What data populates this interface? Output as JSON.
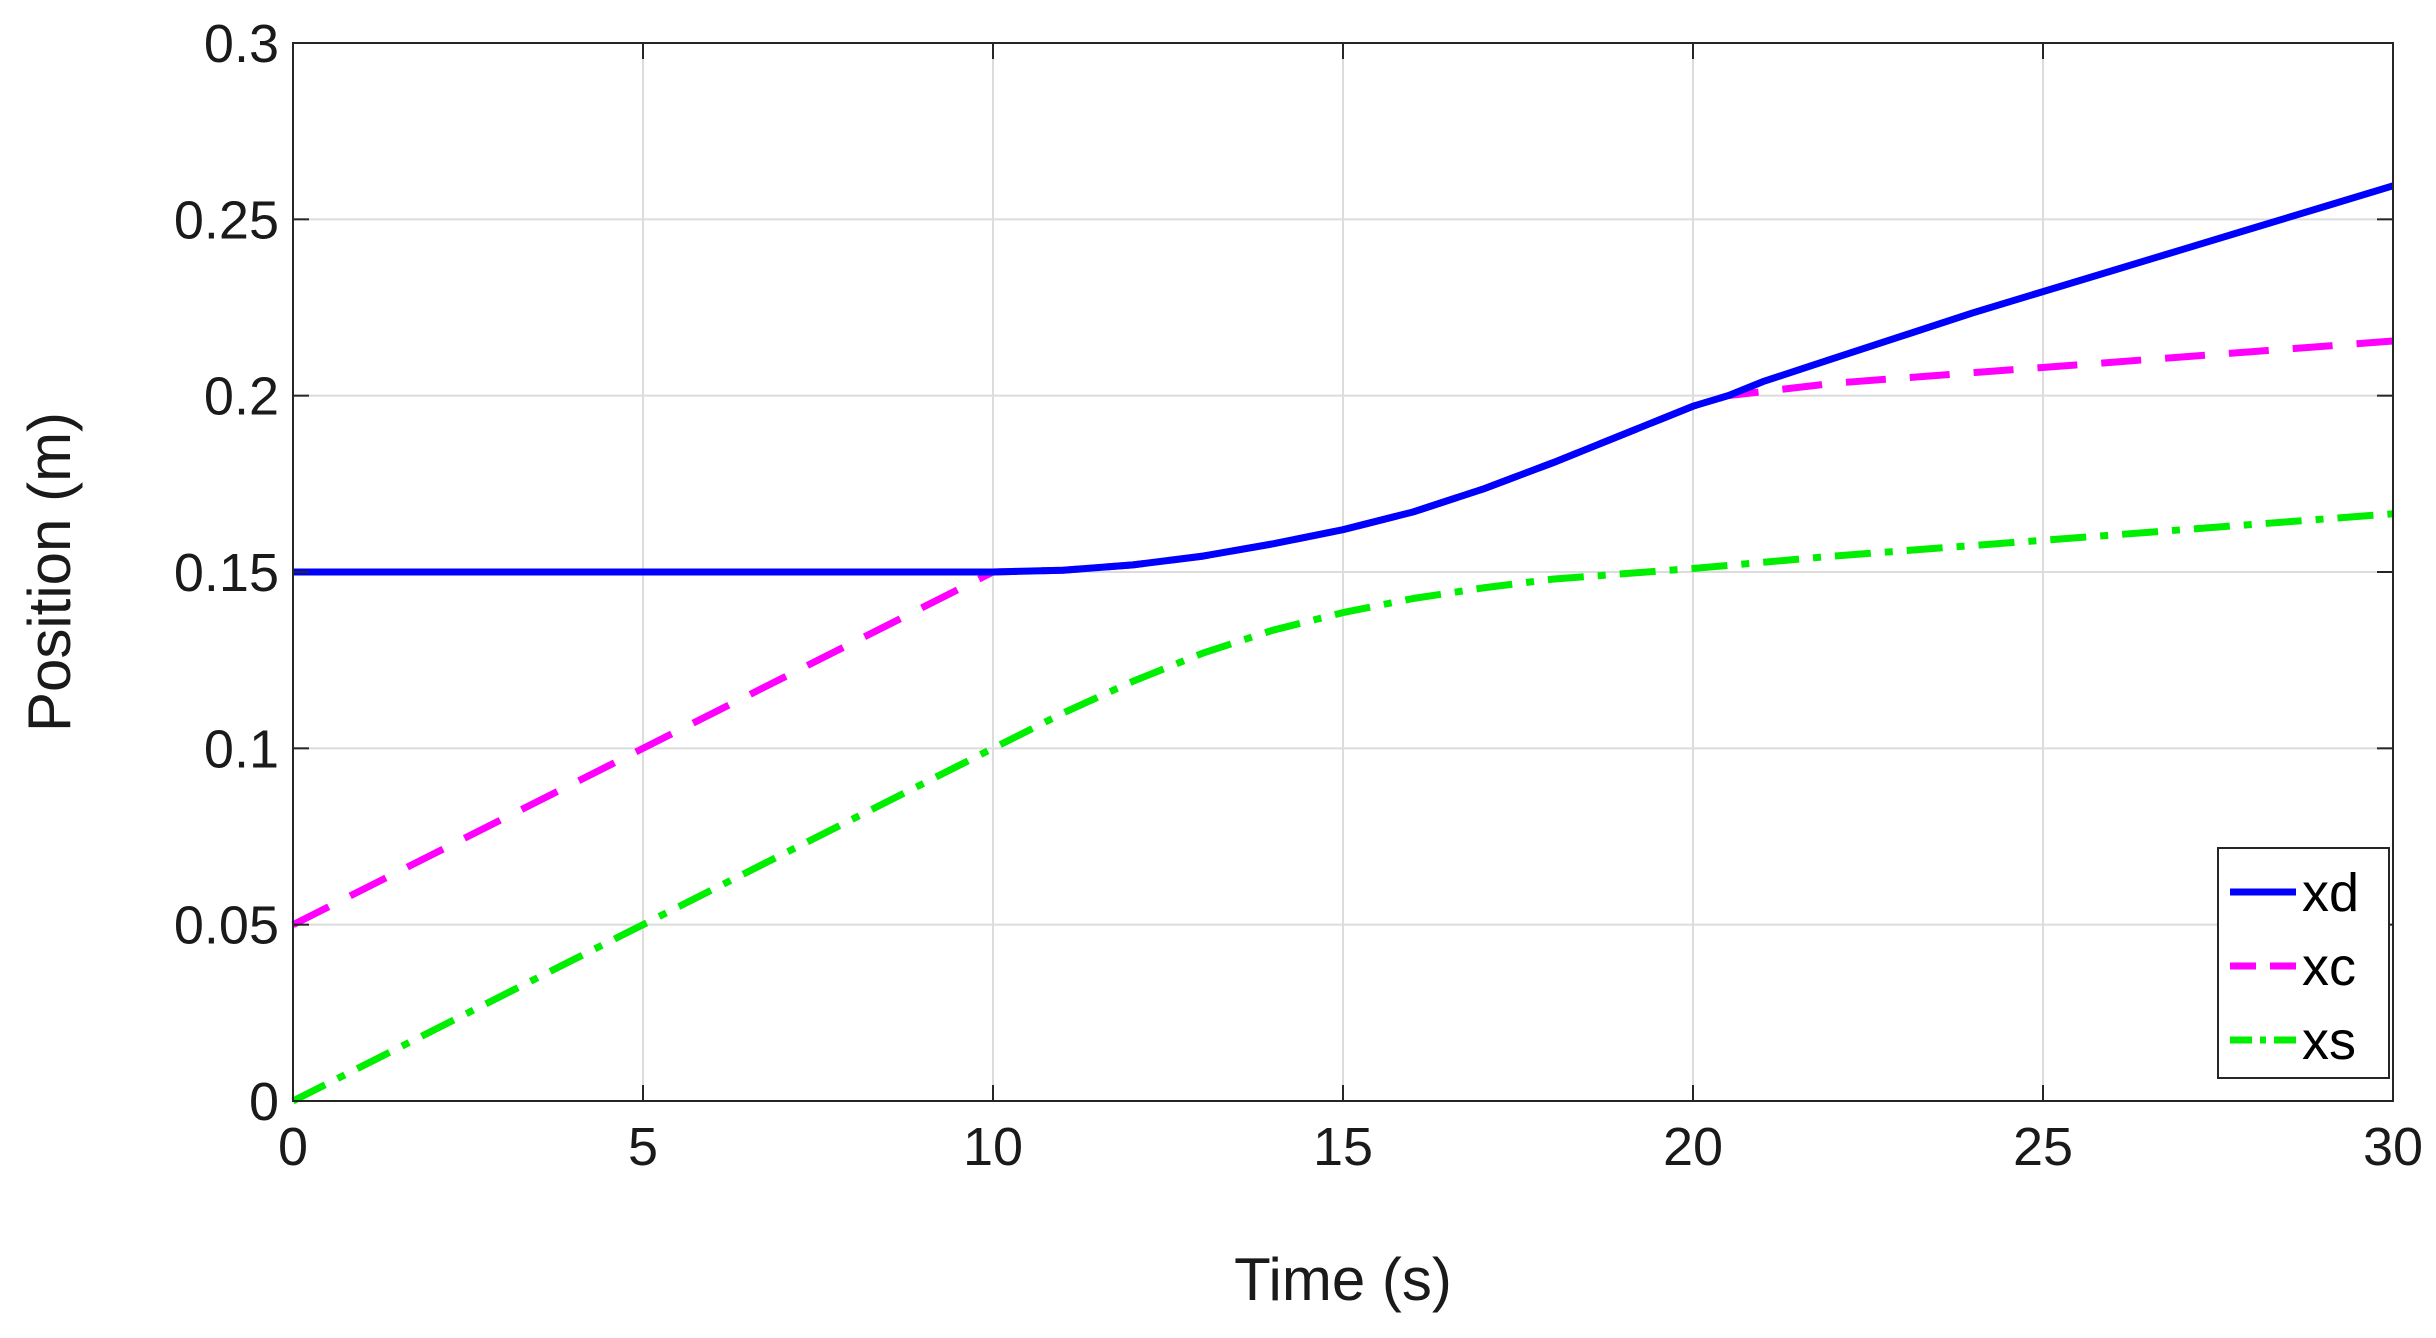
{
  "chart_data": {
    "type": "line",
    "title": "",
    "xlabel": "Time (s)",
    "ylabel": "Position (m)",
    "xlim": [
      0,
      30
    ],
    "ylim": [
      0,
      0.3
    ],
    "xticks": [
      0,
      5,
      10,
      15,
      20,
      25,
      30
    ],
    "yticks": [
      0,
      0.05,
      0.1,
      0.15,
      0.2,
      0.25,
      0.3
    ],
    "xtick_labels": [
      "0",
      "5",
      "10",
      "15",
      "20",
      "25",
      "30"
    ],
    "ytick_labels": [
      "0",
      "0.05",
      "0.1",
      "0.15",
      "0.2",
      "0.25",
      "0.3"
    ],
    "grid": true,
    "legend_position": "bottom-right",
    "series": [
      {
        "name": "xd",
        "color": "#0000ff",
        "style": "solid",
        "x": [
          0,
          10,
          11,
          12,
          13,
          14,
          15,
          16,
          17,
          18,
          19,
          20,
          20.5,
          21,
          22,
          23,
          24,
          25,
          26,
          27,
          28,
          29,
          30
        ],
        "y": [
          0.15,
          0.15,
          0.1505,
          0.152,
          0.1545,
          0.158,
          0.162,
          0.167,
          0.1735,
          0.181,
          0.189,
          0.197,
          0.2,
          0.204,
          0.2105,
          0.217,
          0.2235,
          0.2295,
          0.2355,
          0.2415,
          0.2475,
          0.2535,
          0.2595
        ]
      },
      {
        "name": "xc",
        "color": "#ff00ff",
        "style": "dashed",
        "x": [
          0,
          10,
          11,
          12,
          13,
          14,
          15,
          16,
          17,
          18,
          19,
          20,
          20.5,
          22,
          24,
          26,
          28,
          30
        ],
        "y": [
          0.05,
          0.15,
          0.1505,
          0.152,
          0.1545,
          0.158,
          0.162,
          0.167,
          0.1735,
          0.181,
          0.189,
          0.197,
          0.2,
          0.2035,
          0.2065,
          0.2095,
          0.2125,
          0.2155
        ]
      },
      {
        "name": "xs",
        "color": "#00ee00",
        "style": "dashdot",
        "x": [
          0,
          2,
          4,
          6,
          8,
          10,
          11,
          12,
          13,
          14,
          15,
          16,
          17,
          18,
          19,
          20,
          22,
          24,
          26,
          28,
          30
        ],
        "y": [
          0,
          0.02,
          0.04,
          0.06,
          0.08,
          0.1,
          0.11,
          0.119,
          0.127,
          0.1335,
          0.1385,
          0.1425,
          0.1455,
          0.148,
          0.1495,
          0.151,
          0.1545,
          0.1575,
          0.1605,
          0.1635,
          0.1665
        ]
      }
    ]
  }
}
